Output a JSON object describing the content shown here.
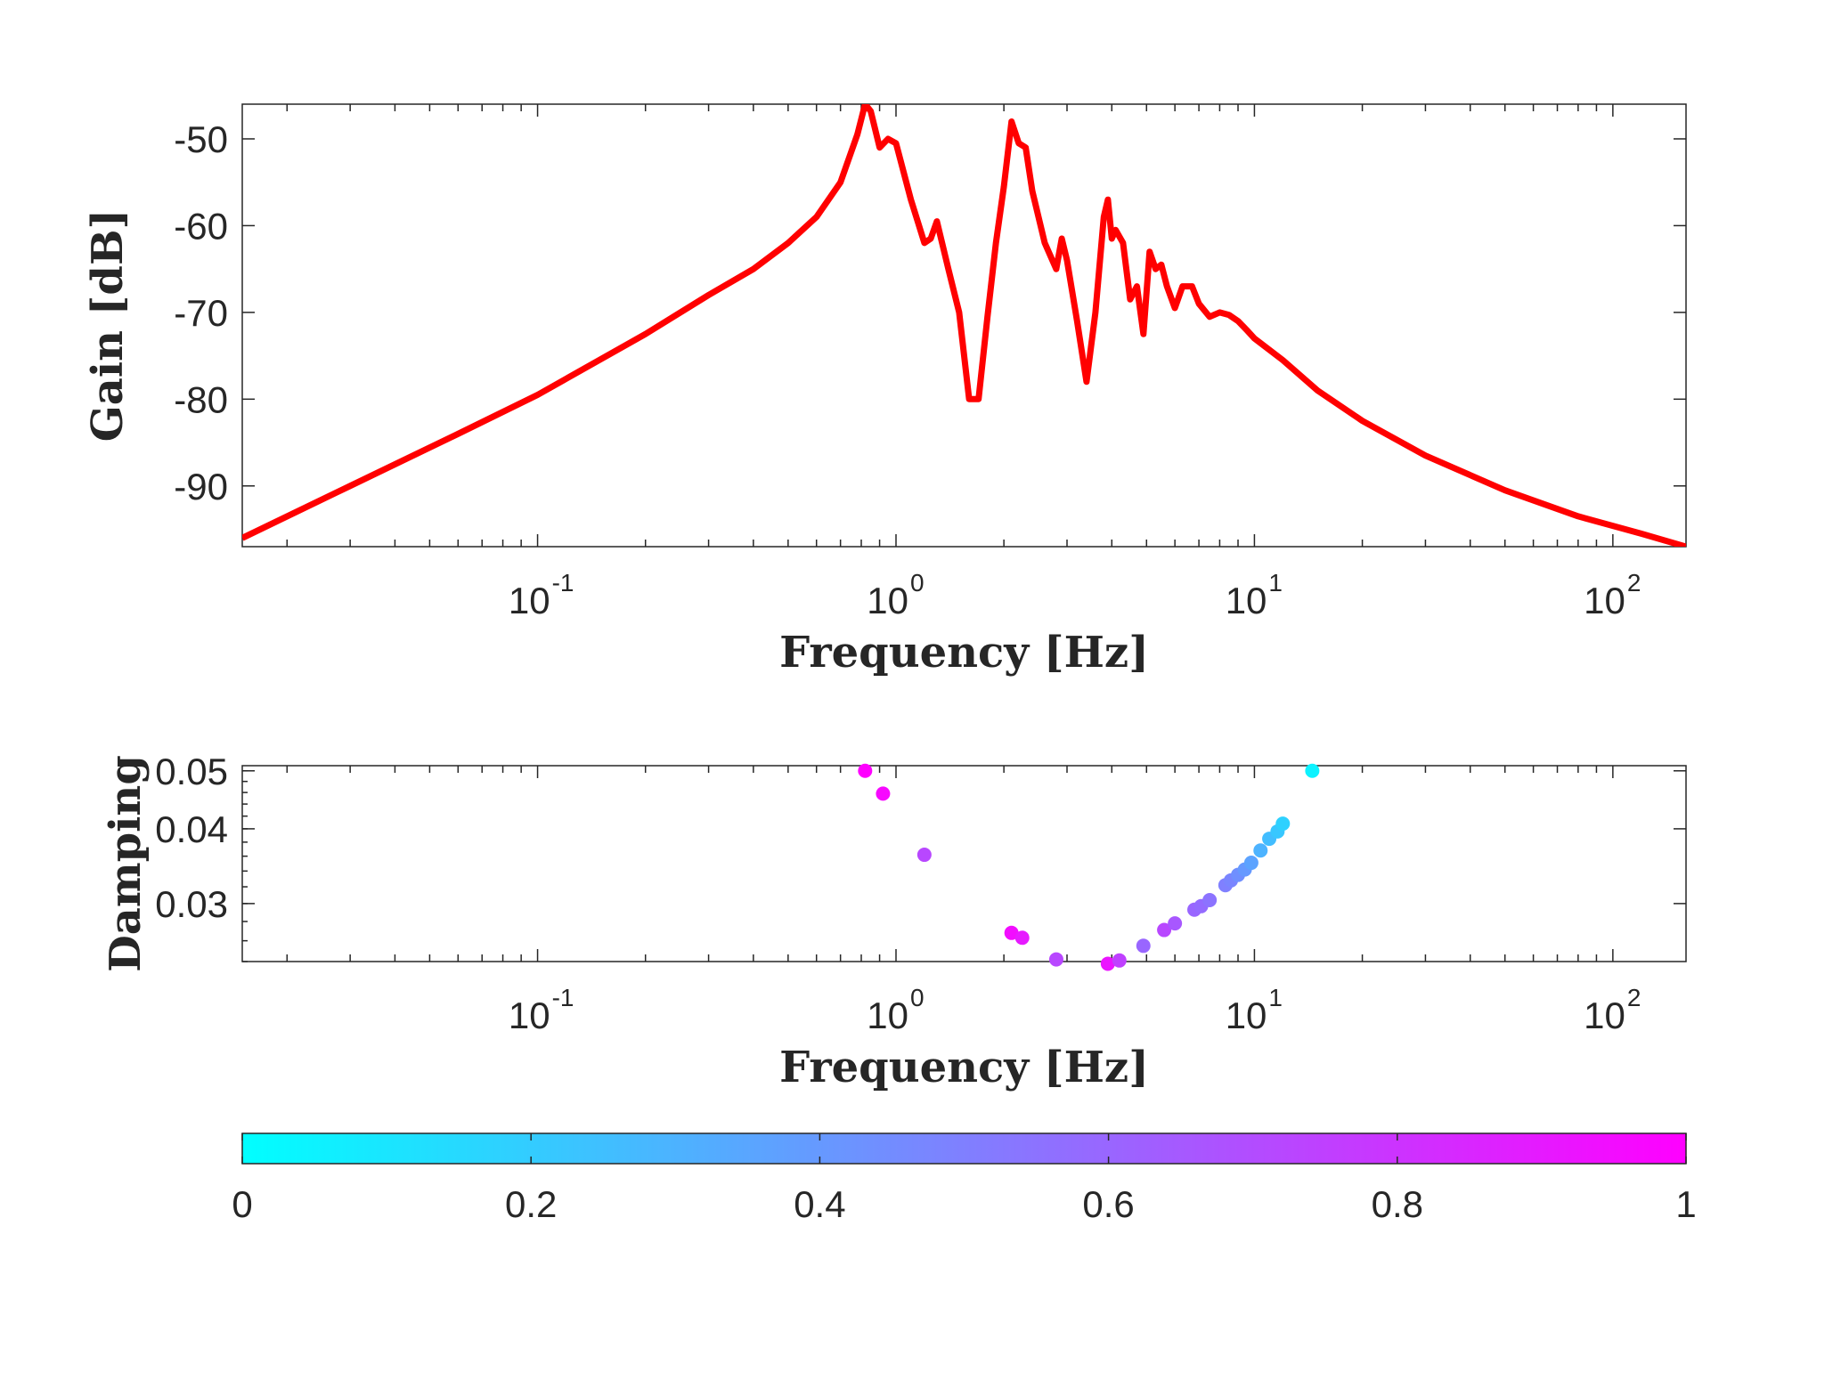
{
  "chart_data": [
    {
      "type": "line",
      "xlabel": "Frequency [Hz]",
      "ylabel": "Gain [dB]",
      "xscale": "log",
      "xlim": [
        0.015,
        160
      ],
      "ylim": [
        -97,
        -46
      ],
      "xticks": [
        {
          "value": 0.1,
          "label": "10",
          "exp": "-1"
        },
        {
          "value": 1,
          "label": "10",
          "exp": "0"
        },
        {
          "value": 10,
          "label": "10",
          "exp": "1"
        },
        {
          "value": 100,
          "label": "10",
          "exp": "2"
        }
      ],
      "yticks": [
        {
          "value": -50,
          "label": "-50"
        },
        {
          "value": -60,
          "label": "-60"
        },
        {
          "value": -70,
          "label": "-70"
        },
        {
          "value": -80,
          "label": "-80"
        },
        {
          "value": -90,
          "label": "-90"
        }
      ],
      "grid": false,
      "color": "#ff0000",
      "series": [
        {
          "x": [
            0.015,
            0.03,
            0.06,
            0.1,
            0.2,
            0.3,
            0.4,
            0.5,
            0.6,
            0.7,
            0.78,
            0.82,
            0.85,
            0.9,
            0.95,
            1.0,
            1.1,
            1.2,
            1.25,
            1.3,
            1.4,
            1.5,
            1.6,
            1.7,
            1.8,
            1.9,
            2.0,
            2.1,
            2.2,
            2.3,
            2.4,
            2.6,
            2.8,
            2.9,
            3.0,
            3.2,
            3.4,
            3.5,
            3.6,
            3.8,
            3.9,
            4.0,
            4.1,
            4.3,
            4.5,
            4.7,
            4.9,
            5.1,
            5.3,
            5.5,
            5.7,
            6.0,
            6.3,
            6.7,
            7.0,
            7.5,
            8.0,
            8.5,
            9.0,
            9.5,
            10,
            12,
            15,
            20,
            30,
            50,
            80,
            120,
            160
          ],
          "y": [
            -96,
            -90,
            -84,
            -79.5,
            -72.5,
            -68,
            -65,
            -62,
            -59,
            -55,
            -49.5,
            -46,
            -46.8,
            -51,
            -50,
            -50.5,
            -57,
            -62,
            -61.5,
            -59.5,
            -65,
            -70,
            -80,
            -80,
            -70.5,
            -62,
            -55.5,
            -48,
            -50.5,
            -51,
            -56,
            -62,
            -65,
            -61.5,
            -64,
            -71,
            -78,
            -74,
            -70,
            -59,
            -57,
            -61.5,
            -60.5,
            -62,
            -68.5,
            -67,
            -72.5,
            -63,
            -65,
            -64.5,
            -67,
            -69.5,
            -67,
            -67,
            -69,
            -70.5,
            -70,
            -70.3,
            -71,
            -72,
            -73,
            -75.5,
            -79,
            -82.5,
            -86.5,
            -90.5,
            -93.5,
            -95.5,
            -97
          ]
        }
      ]
    },
    {
      "type": "scatter",
      "xlabel": "Frequency [Hz]",
      "ylabel": "Damping",
      "xscale": "log",
      "yscale": "log",
      "xlim": [
        0.015,
        160
      ],
      "ylim": [
        0.024,
        0.051
      ],
      "xticks": [
        {
          "value": 0.1,
          "label": "10",
          "exp": "-1"
        },
        {
          "value": 1,
          "label": "10",
          "exp": "0"
        },
        {
          "value": 10,
          "label": "10",
          "exp": "1"
        },
        {
          "value": 100,
          "label": "10",
          "exp": "2"
        }
      ],
      "yticks": [
        {
          "value": 0.05,
          "label": "0.05"
        },
        {
          "value": 0.04,
          "label": "0.04"
        },
        {
          "value": 0.03,
          "label": "0.03"
        }
      ],
      "grid": false,
      "colormap": {
        "low": "#00ffff",
        "high": "#ff00ff"
      },
      "points": [
        {
          "x": 0.82,
          "y": 0.05,
          "c": 1.0
        },
        {
          "x": 0.92,
          "y": 0.0458,
          "c": 0.97
        },
        {
          "x": 1.2,
          "y": 0.0362,
          "c": 0.72
        },
        {
          "x": 2.1,
          "y": 0.0268,
          "c": 0.95
        },
        {
          "x": 2.25,
          "y": 0.0263,
          "c": 0.9
        },
        {
          "x": 2.8,
          "y": 0.0242,
          "c": 0.72
        },
        {
          "x": 3.9,
          "y": 0.0238,
          "c": 0.92
        },
        {
          "x": 4.2,
          "y": 0.0241,
          "c": 0.75
        },
        {
          "x": 4.9,
          "y": 0.0255,
          "c": 0.6
        },
        {
          "x": 5.6,
          "y": 0.0271,
          "c": 0.72
        },
        {
          "x": 6.0,
          "y": 0.0278,
          "c": 0.66
        },
        {
          "x": 6.8,
          "y": 0.0293,
          "c": 0.6
        },
        {
          "x": 7.1,
          "y": 0.0297,
          "c": 0.58
        },
        {
          "x": 7.5,
          "y": 0.0304,
          "c": 0.55
        },
        {
          "x": 8.3,
          "y": 0.0322,
          "c": 0.5
        },
        {
          "x": 8.6,
          "y": 0.0328,
          "c": 0.48
        },
        {
          "x": 9.0,
          "y": 0.0335,
          "c": 0.44
        },
        {
          "x": 9.4,
          "y": 0.0342,
          "c": 0.4
        },
        {
          "x": 9.8,
          "y": 0.0351,
          "c": 0.36
        },
        {
          "x": 10.4,
          "y": 0.0368,
          "c": 0.3
        },
        {
          "x": 11.0,
          "y": 0.0385,
          "c": 0.26
        },
        {
          "x": 11.6,
          "y": 0.0396,
          "c": 0.22
        },
        {
          "x": 12.0,
          "y": 0.0408,
          "c": 0.18
        },
        {
          "x": 14.5,
          "y": 0.05,
          "c": 0.05
        }
      ]
    }
  ],
  "colorbar": {
    "ticks": [
      "0",
      "0.2",
      "0.4",
      "0.6",
      "0.8",
      "1"
    ],
    "low": "#00ffff",
    "high": "#ff00ff"
  }
}
